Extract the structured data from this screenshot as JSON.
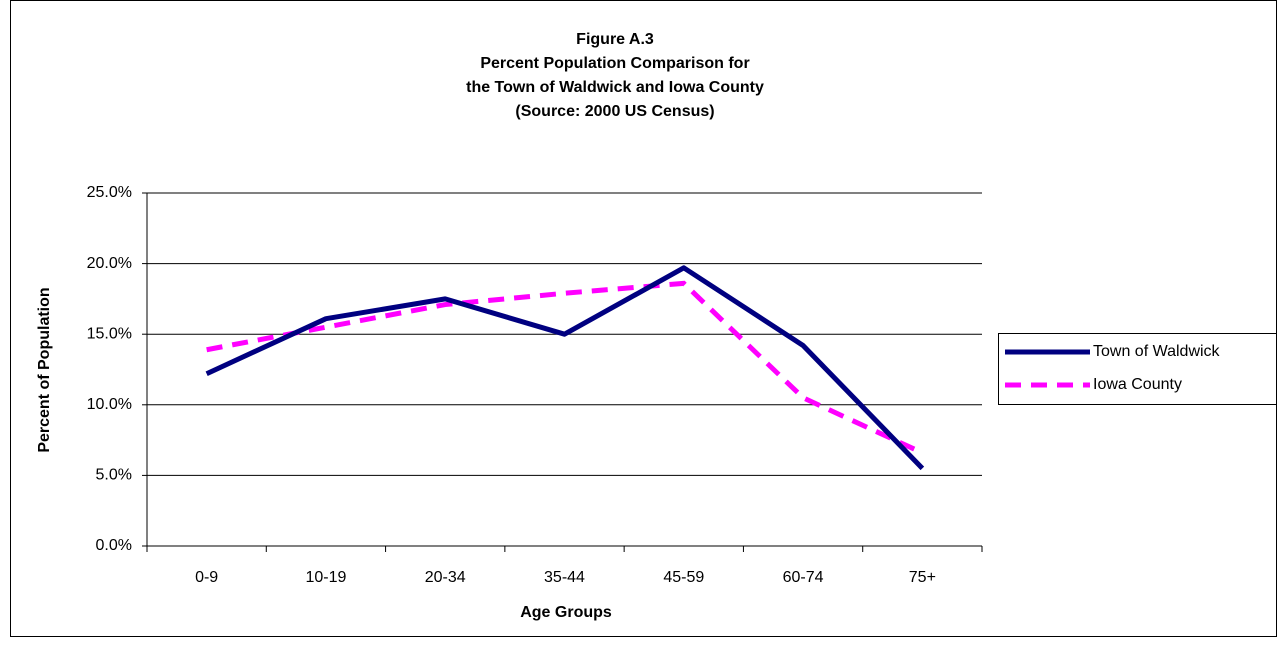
{
  "chart_data": {
    "type": "line",
    "title": [
      "Figure A.3",
      "Percent Population Comparison for",
      "the Town of Waldwick and Iowa County",
      "(Source:  2000 US Census)"
    ],
    "x_label": "Age Groups",
    "y_label": "Percent of Population",
    "categories": [
      "0-9",
      "10-19",
      "20-34",
      "35-44",
      "45-59",
      "60-74",
      "75+"
    ],
    "series": [
      {
        "name": "Town of Waldwick",
        "color": "#000080",
        "dash": false,
        "values": [
          12.2,
          16.1,
          17.5,
          15.0,
          19.7,
          14.2,
          5.5
        ]
      },
      {
        "name": "Iowa County",
        "color": "#ff00ff",
        "dash": true,
        "values": [
          13.9,
          15.5,
          17.1,
          17.9,
          18.6,
          10.5,
          6.6
        ]
      }
    ],
    "ylim": [
      0,
      25
    ],
    "yticks": [
      {
        "value": 0,
        "label": "0.0%"
      },
      {
        "value": 5,
        "label": "5.0%"
      },
      {
        "value": 10,
        "label": "10.0%"
      },
      {
        "value": 15,
        "label": "15.0%"
      },
      {
        "value": 20,
        "label": "20.0%"
      },
      {
        "value": 25,
        "label": "25.0%"
      }
    ],
    "grid": true,
    "legend": "right"
  }
}
